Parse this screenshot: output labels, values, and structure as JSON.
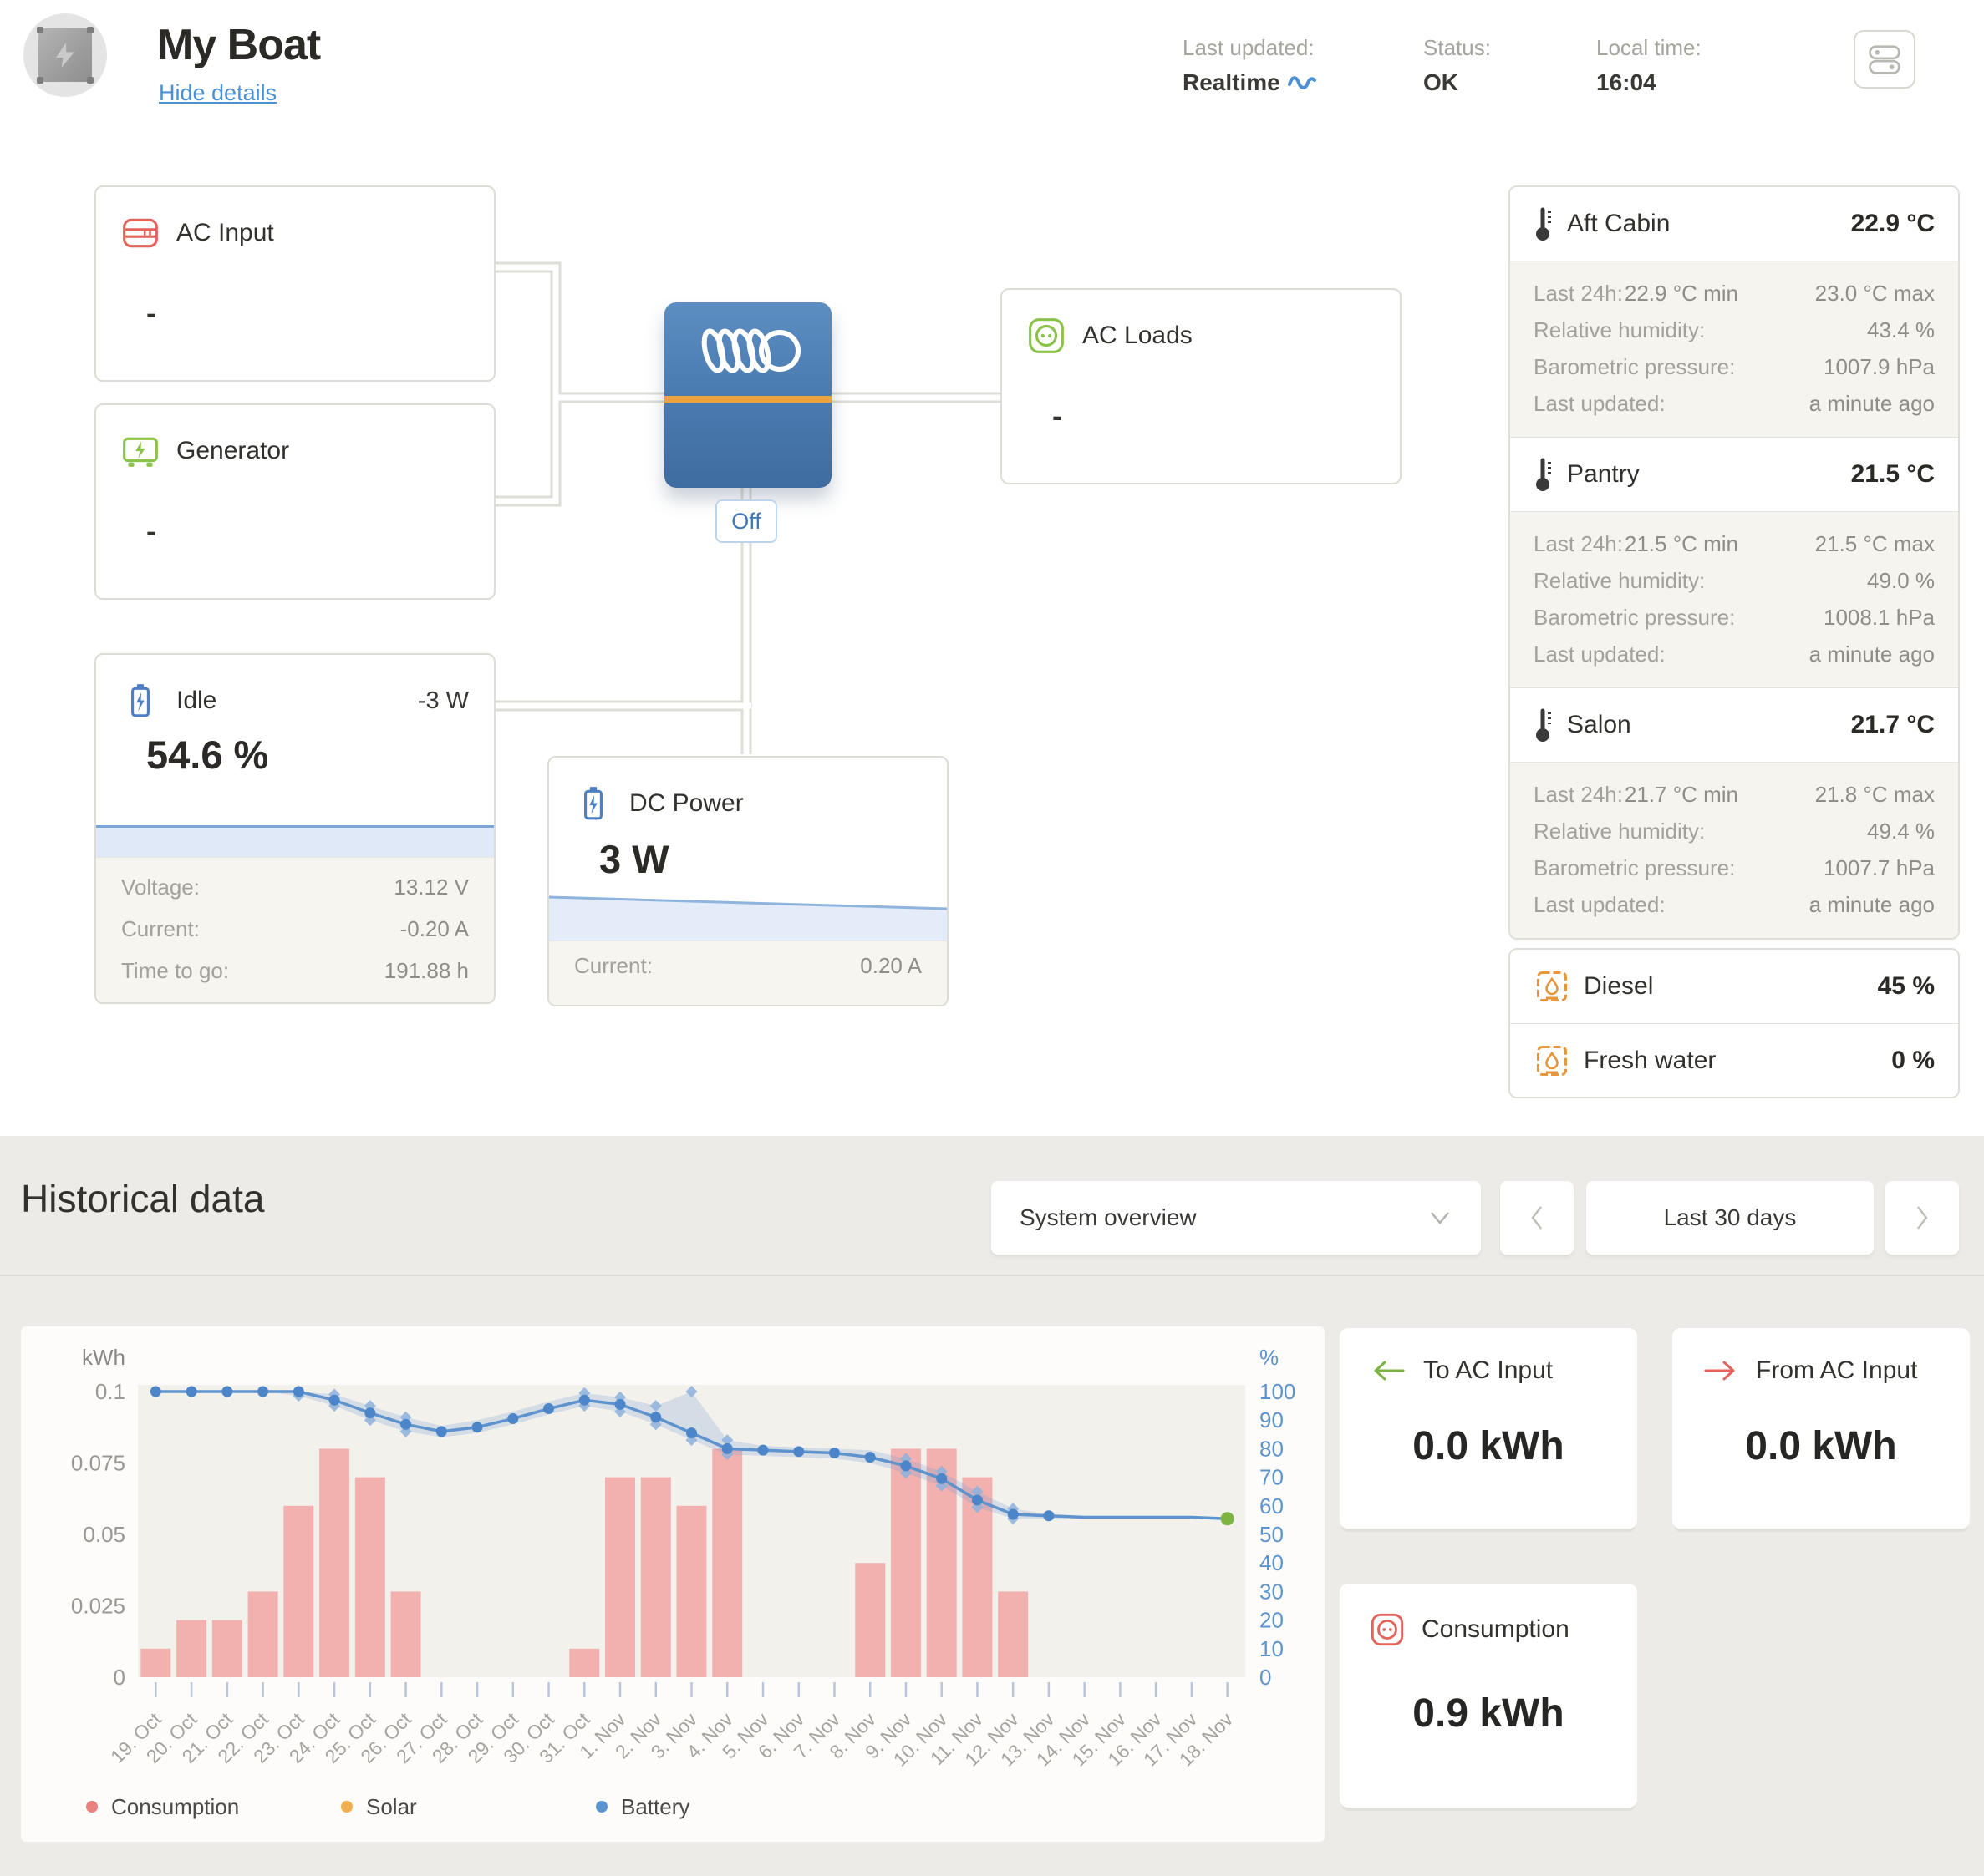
{
  "header": {
    "title": "My Boat",
    "hide_details": "Hide details",
    "last_updated_label": "Last updated:",
    "last_updated_value": "Realtime",
    "status_label": "Status:",
    "status_value": "OK",
    "local_time_label": "Local time:",
    "local_time_value": "16:04"
  },
  "schematic": {
    "ac_input": {
      "label": "AC Input",
      "value": "-"
    },
    "generator": {
      "label": "Generator",
      "value": "-"
    },
    "ac_loads": {
      "label": "AC Loads",
      "value": "-"
    },
    "inverter": {
      "status": "Off"
    },
    "battery": {
      "state": "Idle",
      "power": "-3 W",
      "soc": "54.6 %",
      "details": [
        {
          "label": "Voltage:",
          "value": "13.12 V"
        },
        {
          "label": "Current:",
          "value": "-0.20 A"
        },
        {
          "label": "Time to go:",
          "value": "191.88 h"
        }
      ]
    },
    "dc_power": {
      "label": "DC Power",
      "value": "3 W",
      "details": [
        {
          "label": "Current:",
          "value": "0.20 A"
        }
      ]
    }
  },
  "environment": {
    "sensors": [
      {
        "name": "Aft Cabin",
        "temperature": "22.9 °C",
        "last24h_label": "Last 24h:",
        "min": "22.9 °C min",
        "max": "23.0 °C max",
        "humidity_label": "Relative humidity:",
        "humidity": "43.4 %",
        "pressure_label": "Barometric pressure:",
        "pressure": "1007.9 hPa",
        "updated_label": "Last updated:",
        "updated": "a minute ago"
      },
      {
        "name": "Pantry",
        "temperature": "21.5 °C",
        "last24h_label": "Last 24h:",
        "min": "21.5 °C min",
        "max": "21.5 °C max",
        "humidity_label": "Relative humidity:",
        "humidity": "49.0 %",
        "pressure_label": "Barometric pressure:",
        "pressure": "1008.1 hPa",
        "updated_label": "Last updated:",
        "updated": "a minute ago"
      },
      {
        "name": "Salon",
        "temperature": "21.7 °C",
        "last24h_label": "Last 24h:",
        "min": "21.7 °C min",
        "max": "21.8 °C max",
        "humidity_label": "Relative humidity:",
        "humidity": "49.4 %",
        "pressure_label": "Barometric pressure:",
        "pressure": "1007.7 hPa",
        "updated_label": "Last updated:",
        "updated": "a minute ago"
      }
    ],
    "tanks": [
      {
        "name": "Diesel",
        "level": "45 %"
      },
      {
        "name": "Fresh water",
        "level": "0 %"
      }
    ]
  },
  "historical": {
    "title": "Historical data",
    "dropdown": "System overview",
    "range": "Last 30 days",
    "cards": [
      {
        "name": "To AC Input",
        "value": "0.0 kWh"
      },
      {
        "name": "From AC Input",
        "value": "0.0 kWh"
      },
      {
        "name": "Consumption",
        "value": "0.9 kWh"
      }
    ]
  },
  "colors": {
    "accent_blue": "#4a90d2",
    "consumption_bar": "#f2b1af",
    "battery_line": "#5e93cd",
    "battery_band": "rgba(120,160,210,0.25)",
    "marker_fill": "#4d86c8",
    "diamond_fill": "#8db1dc",
    "end_dot_green": "#7cb342",
    "right_axis_text": "#5b93ce",
    "plot_bg": "#f3f1ec"
  },
  "chart_data": {
    "type": "bar+line",
    "title": "Historical data - System overview - Last 30 days",
    "ylabel_left": "kWh",
    "ylabel_right": "%",
    "ylim_left": [
      0,
      0.1
    ],
    "ylim_right": [
      0,
      100
    ],
    "yticks_left": [
      "0.1",
      "0.075",
      "0.05",
      "0.025",
      "0"
    ],
    "yticks_right": [
      "100",
      "90",
      "80",
      "70",
      "60",
      "50",
      "40",
      "30",
      "20",
      "10",
      "0"
    ],
    "categories": [
      "19. Oct",
      "20. Oct",
      "21. Oct",
      "22. Oct",
      "23. Oct",
      "24. Oct",
      "25. Oct",
      "26. Oct",
      "27. Oct",
      "28. Oct",
      "29. Oct",
      "30. Oct",
      "31. Oct",
      "1. Nov",
      "2. Nov",
      "3. Nov",
      "4. Nov",
      "5. Nov",
      "6. Nov",
      "7. Nov",
      "8. Nov",
      "9. Nov",
      "10. Nov",
      "11. Nov",
      "12. Nov",
      "13. Nov",
      "14. Nov",
      "15. Nov",
      "16. Nov",
      "17. Nov",
      "18. Nov"
    ],
    "series": [
      {
        "name": "Consumption",
        "type": "bar",
        "axis": "left",
        "values": [
          0.01,
          0.02,
          0.02,
          0.03,
          0.06,
          0.08,
          0.07,
          0.03,
          0,
          0,
          0,
          0,
          0.01,
          0.07,
          0.07,
          0.06,
          0.08,
          0,
          0,
          0,
          0.04,
          0.08,
          0.08,
          0.07,
          0.03,
          0,
          0,
          0,
          0,
          0,
          0
        ]
      },
      {
        "name": "Solar",
        "type": "bar",
        "axis": "left",
        "values": [
          0,
          0,
          0,
          0,
          0,
          0,
          0,
          0,
          0,
          0,
          0,
          0,
          0,
          0,
          0,
          0,
          0,
          0,
          0,
          0,
          0,
          0,
          0,
          0,
          0,
          0,
          0,
          0,
          0,
          0,
          0
        ]
      },
      {
        "name": "Battery",
        "type": "line",
        "axis": "right",
        "values": [
          100,
          100,
          100,
          100,
          100,
          97,
          92.5,
          88.5,
          86,
          87.5,
          90.5,
          94,
          97,
          95.5,
          91,
          85.5,
          80,
          79.5,
          79,
          78.5,
          77,
          74,
          69.5,
          62,
          57,
          56.5,
          56,
          56,
          56,
          56,
          55.5
        ],
        "max": [
          100,
          100,
          100,
          100,
          100,
          99,
          95,
          91,
          88,
          90,
          93,
          96.5,
          99.5,
          98,
          95,
          100,
          83,
          81,
          80.5,
          80,
          79.5,
          76.5,
          72,
          65,
          59,
          57,
          56.5,
          56,
          56,
          56,
          55.5
        ],
        "min": [
          100,
          100,
          100,
          100,
          98.5,
          95,
          90,
          86,
          84,
          85.5,
          88.5,
          92,
          95,
          93,
          88.5,
          83,
          78,
          77.5,
          77,
          76.5,
          75,
          71.5,
          67,
          59.5,
          55.5,
          55.5,
          56,
          56,
          56,
          56,
          55.5
        ]
      }
    ],
    "circle_marker_count": 26,
    "diamond_indices": [
      4,
      5,
      6,
      7,
      12,
      13,
      14,
      15,
      16,
      21,
      22,
      23,
      24
    ],
    "legend": [
      {
        "label": "Consumption",
        "color": "#e8817f"
      },
      {
        "label": "Solar",
        "color": "#f0b04f"
      },
      {
        "label": "Battery",
        "color": "#5b93ce"
      }
    ],
    "legend_position": "bottom",
    "grid": false
  }
}
